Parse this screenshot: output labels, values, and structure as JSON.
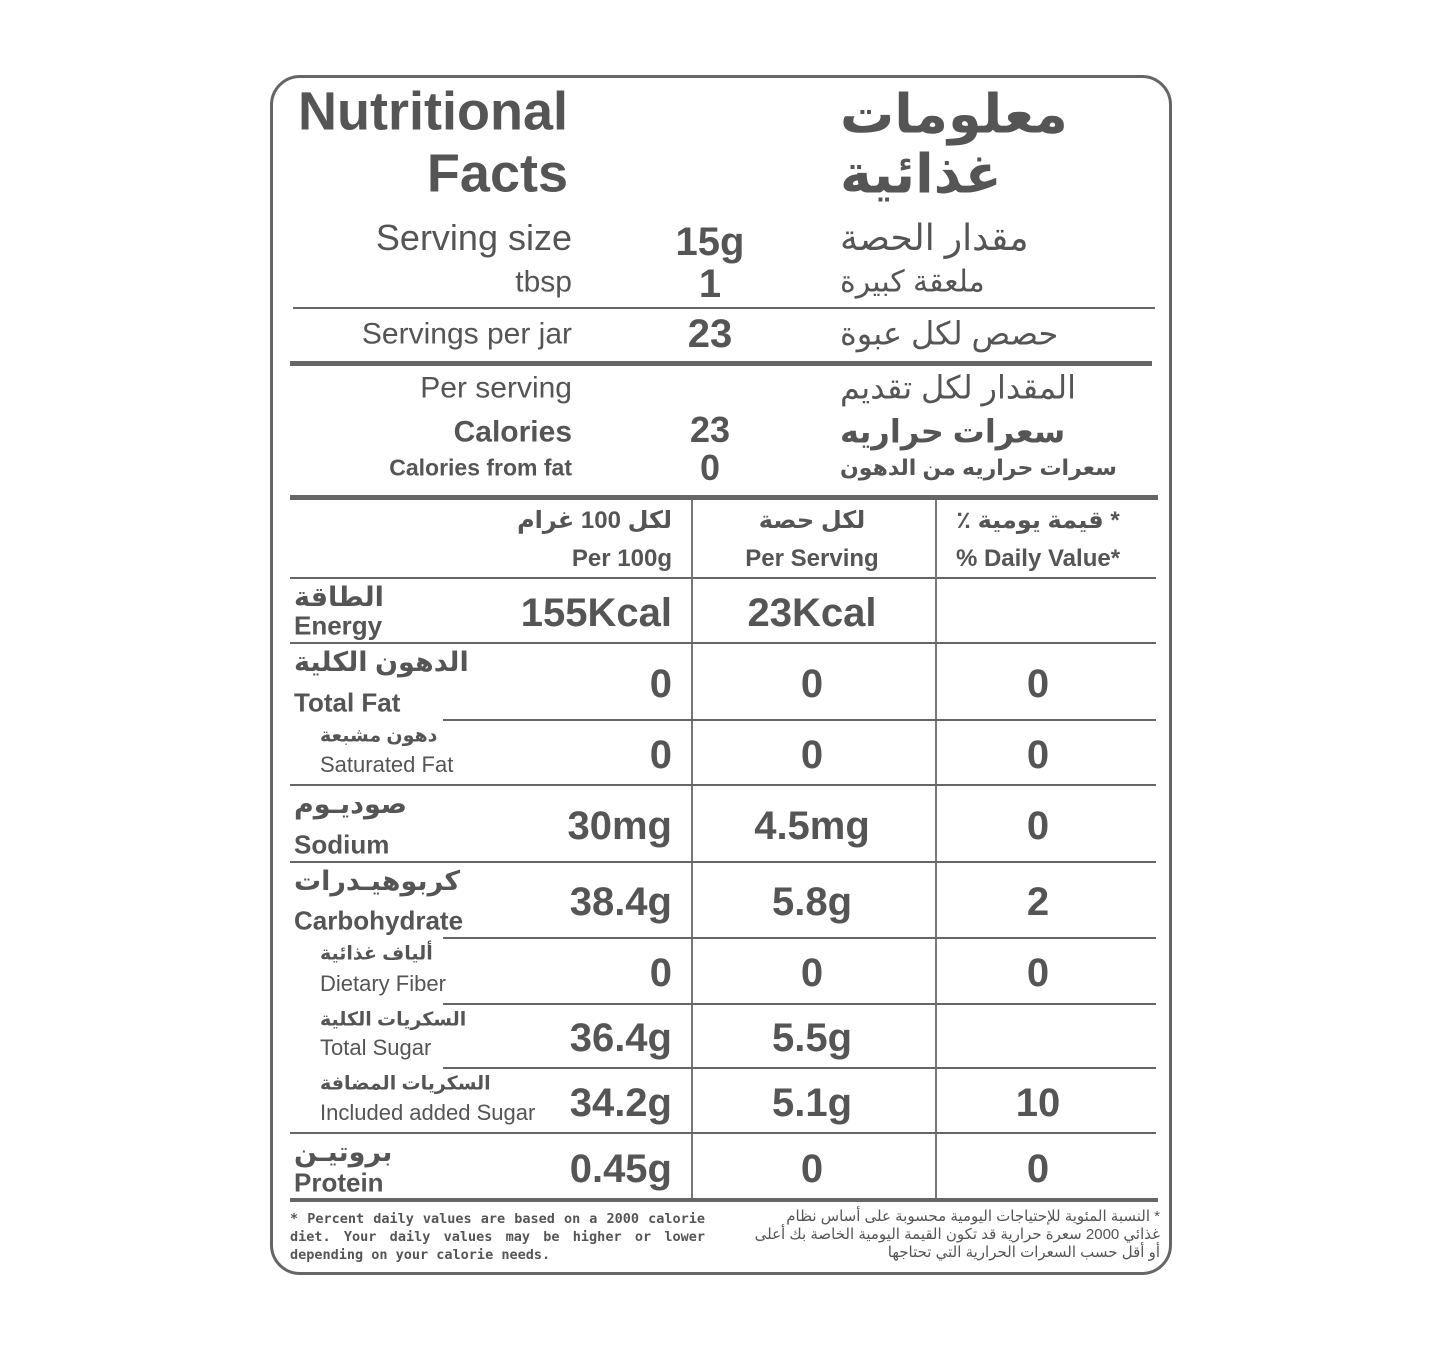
{
  "header": {
    "title_en_lines": [
      "Nutritional",
      "Facts"
    ],
    "title_ar_lines": [
      "معلومات",
      "غذائية"
    ]
  },
  "serving": {
    "size_label_en": "Serving size",
    "size_value": "15g",
    "size_label_ar": "مقدار الحصة",
    "unit_label_en": "tbsp",
    "unit_value": 1,
    "unit_label_ar": "ملعقة كبيرة",
    "per_jar_label_en": "Servings per jar",
    "per_jar_value": 23,
    "per_jar_label_ar": "حصص لكل عبوة"
  },
  "calories": {
    "per_serving_en": "Per serving",
    "per_serving_ar": "المقدار لكل تقديم",
    "calories_en": "Calories",
    "calories_value": 23,
    "calories_ar": "سعرات حراريه",
    "from_fat_en": "Calories from fat",
    "from_fat_value": 0,
    "from_fat_ar": "سعرات حراريه من الدهون"
  },
  "table": {
    "columns": [
      {
        "ar": "لكل 100 غرام",
        "en": "Per 100g"
      },
      {
        "ar": "لكل حصة",
        "en": "Per Serving"
      },
      {
        "ar": "* قيمة يومية ٪",
        "en": "% Daily Value*"
      }
    ],
    "rows": [
      {
        "ar": "الطاقة",
        "en": "Energy",
        "sub": false,
        "per_100g": "155Kcal",
        "per_serving": "23Kcal"
      },
      {
        "ar": "الدهون الكلية",
        "en": "Total Fat",
        "sub": false,
        "per_100g": 0,
        "per_serving": 0,
        "daily_value": 0
      },
      {
        "ar": "دهون مشبعة",
        "en": "Saturated Fat",
        "sub": true,
        "per_100g": 0,
        "per_serving": 0,
        "daily_value": 0
      },
      {
        "ar": "صوديـوم",
        "en": "Sodium",
        "sub": false,
        "per_100g": "30mg",
        "per_serving": "4.5mg",
        "daily_value": 0
      },
      {
        "ar": "كربوهيـدرات",
        "en": "Carbohydrate",
        "sub": false,
        "per_100g": "38.4g",
        "per_serving": "5.8g",
        "daily_value": 2
      },
      {
        "ar": "ألياف غذائية",
        "en": "Dietary Fiber",
        "sub": true,
        "per_100g": 0,
        "per_serving": 0,
        "daily_value": 0
      },
      {
        "ar": "السكريات الكلية",
        "en": "Total Sugar",
        "sub": true,
        "per_100g": "36.4g",
        "per_serving": "5.5g"
      },
      {
        "ar": "السكريات المضافة",
        "en": "Included added Sugar",
        "sub": true,
        "per_100g": "34.2g",
        "per_serving": "5.1g",
        "daily_value": 10
      },
      {
        "ar": "بروتيـن",
        "en": "Protein",
        "sub": false,
        "per_100g": "0.45g",
        "per_serving": 0,
        "daily_value": 0
      }
    ]
  },
  "footnote": {
    "en": "* Percent daily values are based on a 2000 calorie diet. Your daily values may be higher or lower depending on your calorie needs.",
    "ar": "* النسبة المئوية للإحتياجات اليومية محسوبة على أساس نظام غذائي 2000 سعرة حرارية قد تكون القيمة اليومية الخاصة بك أعلى أو أقل حسب السعرات الحرارية التي تحتاجها"
  }
}
